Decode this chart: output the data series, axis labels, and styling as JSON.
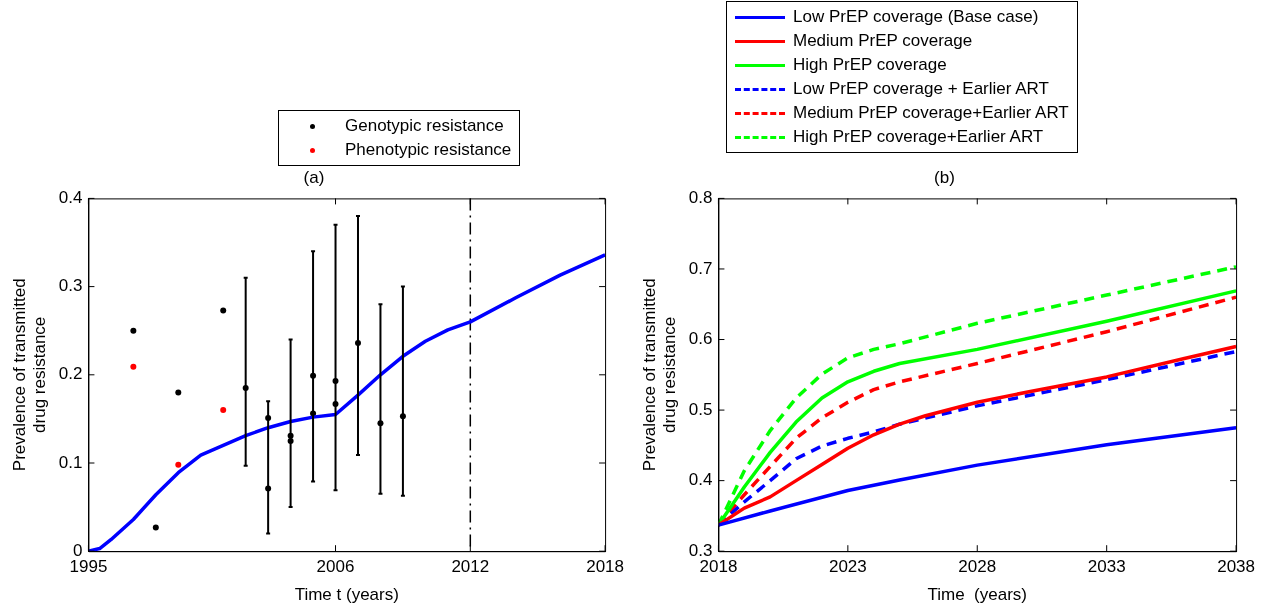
{
  "chart_data": [
    {
      "type": "line",
      "title": "(a)",
      "xlabel": "Time t (years)",
      "ylabel": "Prevalence of transmitted drug resistance",
      "xlim": [
        1995,
        2018
      ],
      "xticks": [
        1995,
        2006,
        2012,
        2018
      ],
      "ylim": [
        0,
        0.4
      ],
      "yticks": [
        0,
        0.1,
        0.2,
        0.3,
        0.4
      ],
      "grid": false,
      "legend": "top",
      "ref_lines": [
        {
          "axis": "x",
          "value": 2012,
          "color": "#000000",
          "line_style": "dashed"
        }
      ],
      "series": [
        {
          "type": "line",
          "color": "#0000ff",
          "marker": "none",
          "x": [
            1995,
            1995.5,
            1996,
            1997,
            1998,
            1999,
            2000,
            2001,
            2002,
            2003,
            2004,
            2005,
            2006,
            2007,
            2008,
            2009,
            2010,
            2011,
            2012,
            2014,
            2016,
            2018
          ],
          "values": [
            0,
            0.003,
            0.013,
            0.036,
            0.064,
            0.089,
            0.109,
            0.12,
            0.131,
            0.14,
            0.147,
            0.152,
            0.155,
            0.177,
            0.2,
            0.221,
            0.238,
            0.251,
            0.26,
            0.287,
            0.313,
            0.336
          ]
        },
        {
          "type": "scatter",
          "name": "Genotypic resistance",
          "color": "#000000",
          "marker": "circle",
          "x": [
            1997,
            1998,
            1999,
            2001,
            2002,
            2003,
            2003,
            2004,
            2004,
            2005,
            2005,
            2006,
            2006,
            2007,
            2008,
            2009
          ],
          "values": [
            0.25,
            0.027,
            0.18,
            0.273,
            0.185,
            0.151,
            0.071,
            0.131,
            0.125,
            0.199,
            0.156,
            0.193,
            0.167,
            0.236,
            0.145,
            0.153
          ],
          "errors": [
            null,
            null,
            null,
            null,
            [
              0.097,
              0.31
            ],
            null,
            [
              0.02,
              0.17
            ],
            null,
            [
              0.05,
              0.24
            ],
            [
              0.079,
              0.34
            ],
            null,
            [
              0.069,
              0.37
            ],
            null,
            [
              0.109,
              0.38
            ],
            [
              0.065,
              0.28
            ],
            [
              0.063,
              0.3
            ]
          ]
        },
        {
          "type": "scatter",
          "name": "Phenotypic resistance",
          "color": "#ff0000",
          "marker": "circle",
          "x": [
            1997,
            1999,
            2001
          ],
          "values": [
            0.209,
            0.098,
            0.16
          ]
        }
      ]
    },
    {
      "type": "line",
      "title": "(b)",
      "xlabel": "Time  (years)",
      "ylabel": "Prevalence of transmitted drug resistance",
      "xlim": [
        2018,
        2038
      ],
      "xticks": [
        2018,
        2023,
        2028,
        2033,
        2038
      ],
      "ylim": [
        0.3,
        0.8
      ],
      "yticks": [
        0.3,
        0.4,
        0.5,
        0.6,
        0.7,
        0.8
      ],
      "grid": false,
      "legend": "top",
      "series": [
        {
          "name": "Low PrEP coverage (Base case)",
          "color": "#0000ff",
          "line_style": "solid",
          "x": [
            2018,
            2020,
            2023,
            2025,
            2028,
            2033,
            2038
          ],
          "values": [
            0.337,
            0.357,
            0.386,
            0.401,
            0.422,
            0.451,
            0.475
          ]
        },
        {
          "name": "Medium PrEP coverage",
          "color": "#ff0000",
          "line_style": "solid",
          "x": [
            2018,
            2019,
            2020,
            2021,
            2022,
            2023,
            2024,
            2025,
            2026,
            2028,
            2030,
            2033,
            2036,
            2038
          ],
          "values": [
            0.337,
            0.361,
            0.377,
            0.4,
            0.423,
            0.446,
            0.465,
            0.48,
            0.492,
            0.511,
            0.526,
            0.547,
            0.573,
            0.59
          ]
        },
        {
          "name": "High PrEP coverage",
          "color": "#00ff00",
          "line_style": "solid",
          "x": [
            2018,
            2019,
            2020,
            2021,
            2022,
            2023,
            2024,
            2025,
            2028,
            2033,
            2038
          ],
          "values": [
            0.337,
            0.391,
            0.44,
            0.483,
            0.517,
            0.54,
            0.555,
            0.566,
            0.586,
            0.626,
            0.669
          ]
        },
        {
          "name": "Low PrEP coverage + Earlier ART",
          "color": "#0000ff",
          "line_style": "dashed",
          "x": [
            2018,
            2019,
            2020,
            2021,
            2022,
            2023,
            2024,
            2025,
            2028,
            2033,
            2038
          ],
          "values": [
            0.337,
            0.37,
            0.4,
            0.431,
            0.449,
            0.46,
            0.469,
            0.48,
            0.506,
            0.543,
            0.583
          ]
        },
        {
          "name": "Medium PrEP coverage+Earlier ART",
          "color": "#ff0000",
          "line_style": "dashed",
          "x": [
            2018,
            2019,
            2020,
            2021,
            2022,
            2023,
            2024,
            2025,
            2028,
            2033,
            2038
          ],
          "values": [
            0.337,
            0.38,
            0.42,
            0.46,
            0.489,
            0.511,
            0.529,
            0.54,
            0.566,
            0.611,
            0.66
          ]
        },
        {
          "name": "High PrEP coverage+Earlier ART",
          "color": "#00ff00",
          "line_style": "dashed",
          "x": [
            2018,
            2019,
            2020,
            2021,
            2022,
            2023,
            2024,
            2025,
            2028,
            2033,
            2038
          ],
          "values": [
            0.337,
            0.414,
            0.471,
            0.517,
            0.551,
            0.574,
            0.586,
            0.594,
            0.623,
            0.663,
            0.703
          ]
        }
      ]
    }
  ]
}
